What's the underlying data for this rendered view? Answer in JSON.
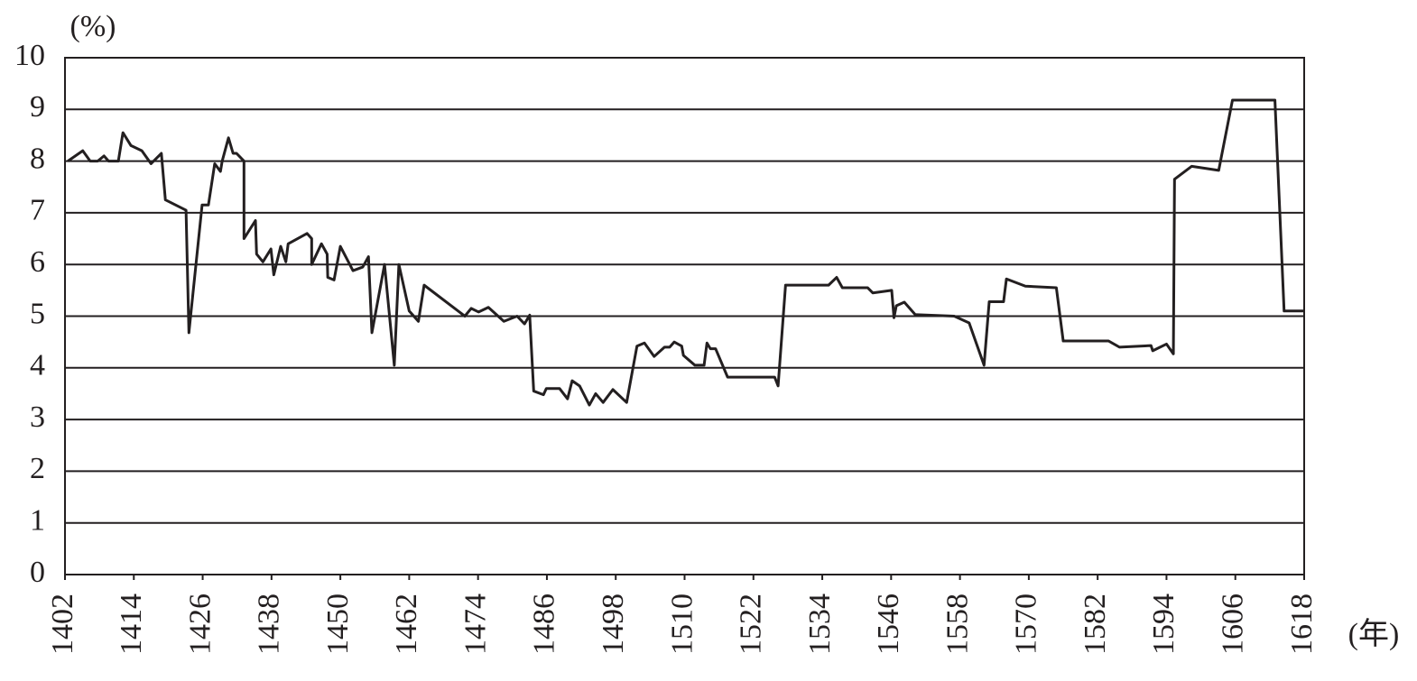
{
  "chart_data": {
    "type": "line",
    "y_label": "(%)",
    "x_label": "(年)",
    "x": [
      1402.5,
      1405.1,
      1406.4,
      1407.7,
      1408.8,
      1409.6,
      1411.3,
      1412.1,
      1413.5,
      1415.4,
      1417,
      1418.8,
      1419.5,
      1423.1,
      1423.6,
      1425.9,
      1427,
      1428.1,
      1429.1,
      1429.4,
      1430.5,
      1431.3,
      1431.9,
      1433.2,
      1433.2,
      1435.2,
      1435.4,
      1436.5,
      1437.9,
      1438.4,
      1439.6,
      1440.5,
      1440.9,
      1444.2,
      1445,
      1445,
      1446.7,
      1447.7,
      1447.8,
      1448.9,
      1450,
      1452.2,
      1453.9,
      1454.9,
      1455.5,
      1457.7,
      1459.4,
      1460.2,
      1462,
      1463.6,
      1464.6,
      1471.7,
      1472.8,
      1474.1,
      1475.8,
      1478.5,
      1480.8,
      1482.1,
      1483,
      1483.7,
      1485.4,
      1485.9,
      1488.2,
      1489.6,
      1490.4,
      1491.7,
      1493.4,
      1494.5,
      1495.8,
      1497.5,
      1499.9,
      1501.7,
      1503,
      1504.7,
      1506.5,
      1507.4,
      1508.2,
      1509.5,
      1509.8,
      1511.8,
      1513.4,
      1513.9,
      1514.5,
      1515.4,
      1517.5,
      1525.7,
      1526.3,
      1527.6,
      1535.1,
      1536.5,
      1537.5,
      1541.9,
      1542.8,
      1546.1,
      1546.5,
      1546.9,
      1548.3,
      1550.2,
      1557,
      1559.6,
      1562.2,
      1563.1,
      1565.6,
      1566.1,
      1569.4,
      1574.8,
      1576,
      1583.9,
      1585.8,
      1591.3,
      1591.6,
      1594,
      1595.2,
      1595.4,
      1598.4,
      1603.1,
      1605.5,
      1612.9,
      1614.5,
      1618
    ],
    "series": [
      {
        "color": "#231f20",
        "values": [
          8.0,
          8.2,
          8.0,
          8.0,
          8.1,
          8.0,
          8.0,
          8.55,
          8.3,
          8.2,
          7.95,
          8.15,
          7.25,
          7.05,
          4.68,
          7.15,
          7.15,
          7.95,
          7.8,
          8.0,
          8.45,
          8.15,
          8.15,
          8.0,
          6.5,
          6.85,
          6.2,
          6.05,
          6.3,
          5.8,
          6.35,
          6.05,
          6.4,
          6.6,
          6.5,
          6.0,
          6.4,
          6.2,
          5.75,
          5.7,
          6.35,
          5.88,
          5.95,
          6.15,
          4.68,
          6.0,
          4.05,
          6.0,
          5.1,
          4.9,
          5.6,
          5.0,
          5.15,
          5.08,
          5.17,
          4.9,
          5.0,
          4.85,
          5.02,
          3.55,
          3.48,
          3.6,
          3.6,
          3.4,
          3.75,
          3.65,
          3.28,
          3.5,
          3.33,
          3.58,
          3.33,
          4.42,
          4.48,
          4.22,
          4.4,
          4.4,
          4.5,
          4.42,
          4.24,
          4.05,
          4.05,
          4.48,
          4.37,
          4.37,
          3.82,
          3.82,
          3.65,
          5.6,
          5.6,
          5.75,
          5.55,
          5.55,
          5.45,
          5.5,
          4.97,
          5.2,
          5.27,
          5.03,
          5.0,
          4.87,
          4.05,
          5.28,
          5.28,
          5.72,
          5.58,
          5.55,
          4.52,
          4.52,
          4.4,
          4.43,
          4.33,
          4.46,
          4.27,
          7.65,
          7.9,
          7.82,
          9.18,
          9.18,
          5.1,
          5.1
        ]
      }
    ],
    "xlim": [
      1402,
      1618
    ],
    "xticks": [
      1402,
      1414,
      1426,
      1438,
      1450,
      1462,
      1474,
      1486,
      1498,
      1510,
      1522,
      1534,
      1546,
      1558,
      1570,
      1582,
      1594,
      1606,
      1618
    ],
    "ylim": [
      0,
      10
    ],
    "yticks": [
      0,
      1,
      2,
      3,
      4,
      5,
      6,
      7,
      8,
      9,
      10
    ],
    "grid": true
  }
}
